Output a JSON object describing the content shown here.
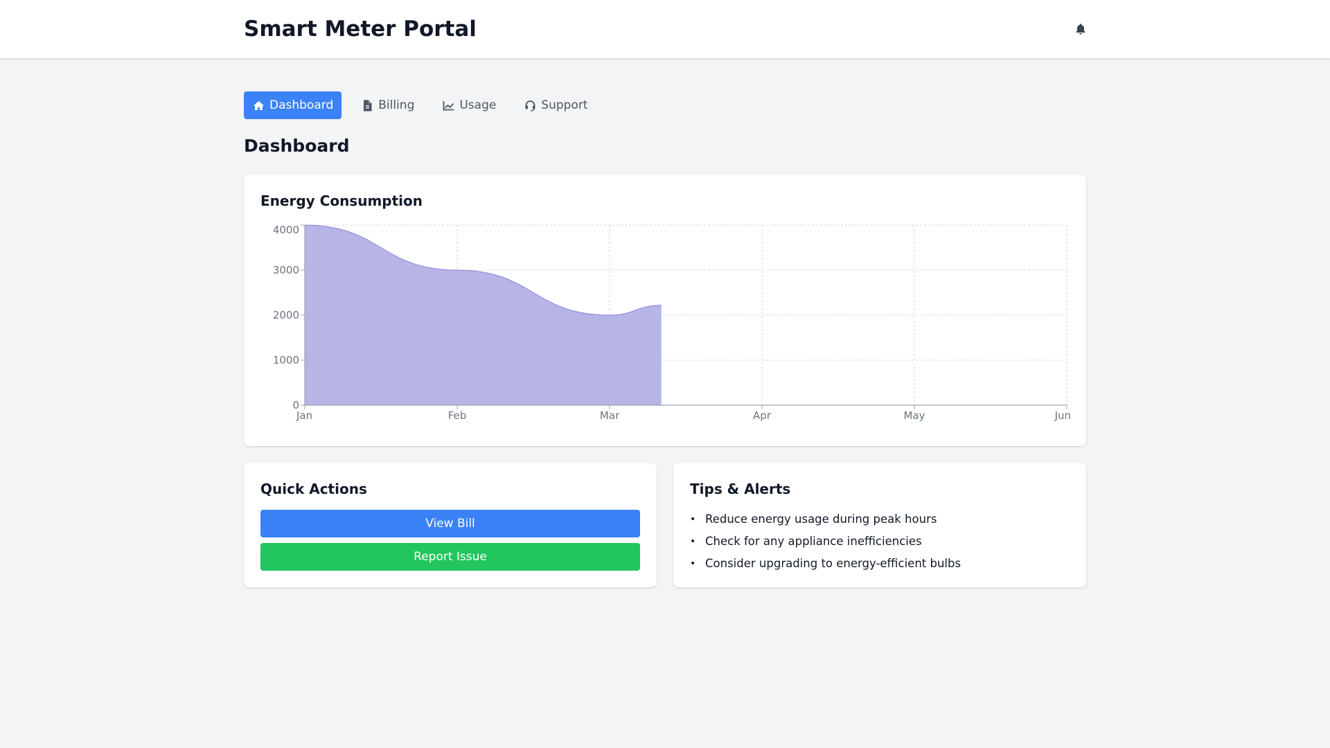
{
  "header": {
    "title": "Smart Meter Portal",
    "bell_icon": "bell-icon"
  },
  "nav": {
    "items": [
      {
        "label": "Dashboard",
        "icon": "home-icon",
        "active": true
      },
      {
        "label": "Billing",
        "icon": "file-invoice-icon",
        "active": false
      },
      {
        "label": "Usage",
        "icon": "chart-line-icon",
        "active": false
      },
      {
        "label": "Support",
        "icon": "headset-icon",
        "active": false
      }
    ]
  },
  "page": {
    "title": "Dashboard"
  },
  "chart_card": {
    "title": "Energy Consumption"
  },
  "chart_data": {
    "type": "area",
    "title": "Energy Consumption",
    "xlabel": "",
    "ylabel": "",
    "categories": [
      "Jan",
      "Feb",
      "Mar",
      "Apr",
      "May",
      "Jun"
    ],
    "series": [
      {
        "x": [
          0,
          1,
          2,
          2.34
        ],
        "values": [
          4000,
          3000,
          2000,
          2220
        ]
      }
    ],
    "yticks": [
      0,
      1000,
      2000,
      3000,
      4000
    ],
    "ylim": [
      0,
      4000
    ],
    "grid": true,
    "colors": {
      "fill": "#b7b4e6",
      "stroke": "#8884d8",
      "grid": "#d1d5db",
      "axis": "#9ca3af",
      "tick_text": "#6b7280"
    }
  },
  "quick_actions": {
    "title": "Quick Actions",
    "view_bill": "View Bill",
    "report_issue": "Report Issue"
  },
  "tips": {
    "title": "Tips & Alerts",
    "items": [
      "Reduce energy usage during peak hours",
      "Check for any appliance inefficiencies",
      "Consider upgrading to energy-efficient bulbs"
    ]
  },
  "colors": {
    "primary": "#3b82f6",
    "success": "#22c55e",
    "background": "#f3f4f6"
  }
}
